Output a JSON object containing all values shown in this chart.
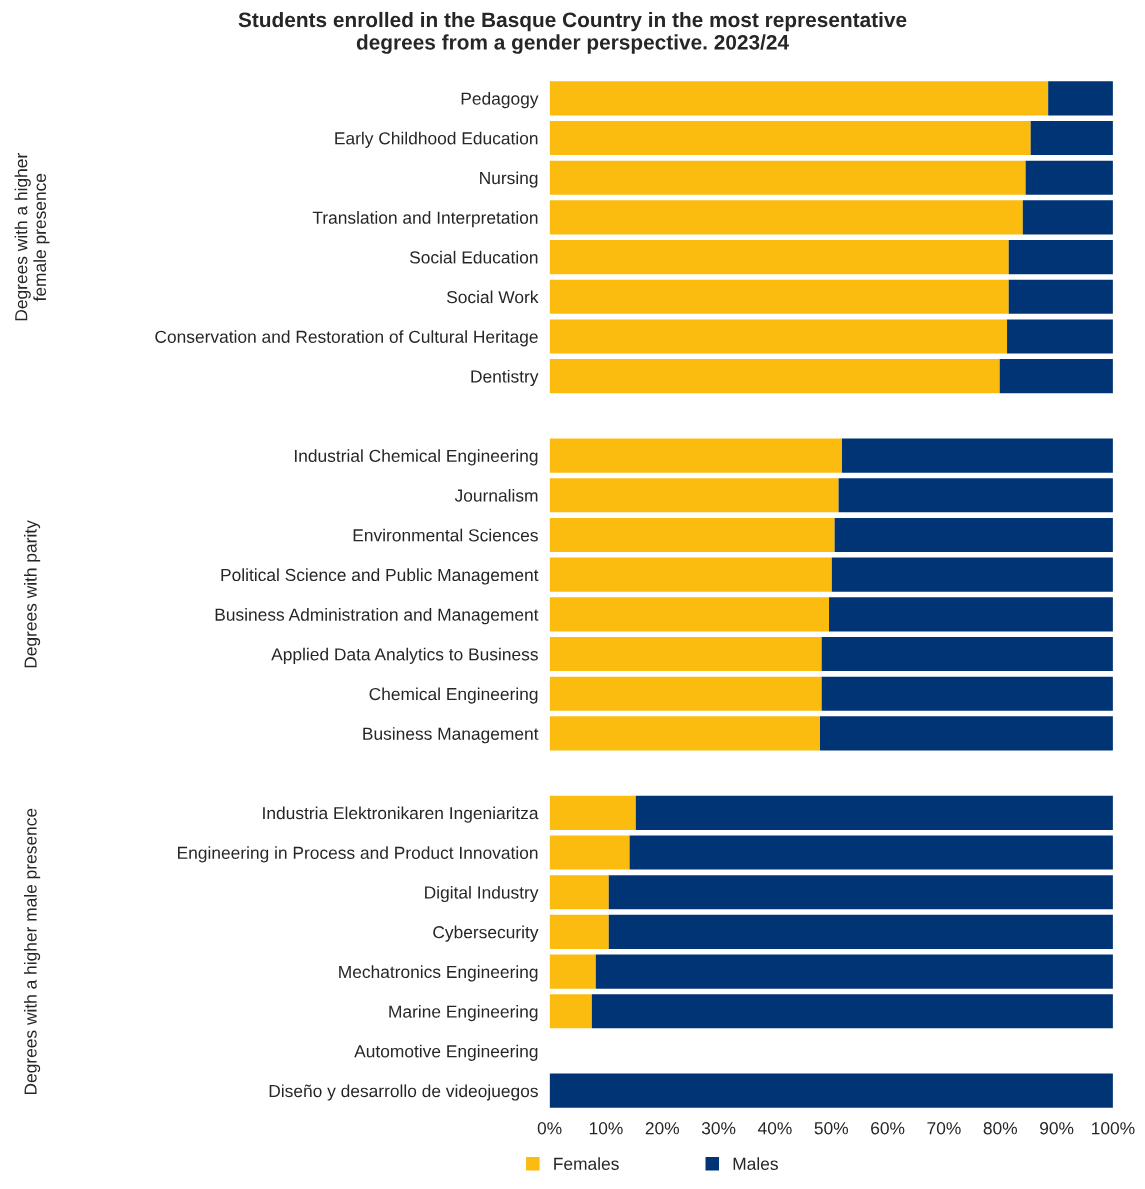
{
  "chart_data": {
    "type": "bar",
    "orientation": "horizontal",
    "stacked": true,
    "title": "Students enrolled in the Basque Country in the most representative\ndegrees from a gender perspective. 2023/24",
    "categories": [
      "Pedagogy",
      "Early Childhood Education",
      "Nursing",
      "Translation and Interpretation",
      "Social Education",
      "Social Work",
      "Conservation and Restoration of Cultural Heritage",
      "Dentistry",
      null,
      "Industrial Chemical Engineering",
      "Journalism",
      "Environmental Sciences",
      "Political Science and Public Management",
      "Business Administration and Management",
      "Applied Data Analytics to Business",
      "Chemical Engineering",
      "Business Management",
      null,
      "Industria Elektronikaren Ingeniaritza",
      "Engineering in Process and Product Innovation",
      "Digital Industry",
      "Cybersecurity",
      "Mechatronics Engineering",
      "Marine Engineering",
      "Automotive Engineering",
      "Diseño y desarrollo de videojuegos"
    ],
    "series": [
      {
        "name": "Females",
        "color": "#fbbc0f",
        "values": [
          88.5,
          85.4,
          84.5,
          84.0,
          81.5,
          81.5,
          81.2,
          79.9,
          null,
          51.9,
          51.3,
          50.6,
          50.1,
          49.6,
          48.3,
          48.3,
          48.0,
          null,
          15.3,
          14.2,
          10.5,
          10.5,
          8.2,
          7.5,
          null,
          0
        ]
      },
      {
        "name": "Males",
        "color": "#003474",
        "values": [
          11.5,
          14.6,
          15.5,
          16.0,
          18.5,
          18.5,
          18.8,
          20.1,
          null,
          48.1,
          48.7,
          49.4,
          49.9,
          50.4,
          51.7,
          51.7,
          52.0,
          null,
          84.7,
          85.8,
          89.5,
          89.5,
          91.8,
          92.5,
          null,
          100
        ]
      }
    ],
    "xlim": [
      0,
      100
    ],
    "xticks": [
      {
        "value": 0,
        "label": "0%"
      },
      {
        "value": 10,
        "label": "10%"
      },
      {
        "value": 20,
        "label": "20%"
      },
      {
        "value": 30,
        "label": "30%"
      },
      {
        "value": 40,
        "label": "40%"
      },
      {
        "value": 50,
        "label": "50%"
      },
      {
        "value": 60,
        "label": "60%"
      },
      {
        "value": 70,
        "label": "70%"
      },
      {
        "value": 80,
        "label": "80%"
      },
      {
        "value": 90,
        "label": "90%"
      },
      {
        "value": 100,
        "label": "100%"
      }
    ],
    "annotations": [
      "Degrees with a higher\nfemale presence",
      "Degrees with parity",
      "Degrees with a higher male presence"
    ],
    "legend": "bottom",
    "grid": false
  }
}
